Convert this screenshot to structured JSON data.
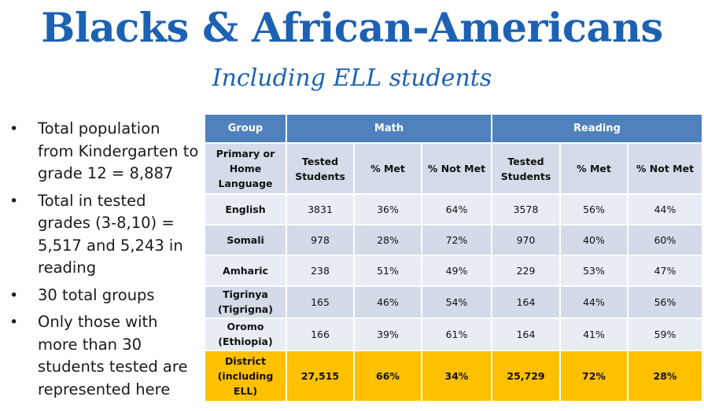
{
  "title": "Blacks & African-Americans",
  "subtitle": "Including ELL students",
  "bullets": [
    "Total population from Kindergarten to grade 12 = 8,887",
    "Total in tested grades (3-8,10) = 5,517 and 5,243 in reading",
    "30 total groups",
    "Only those with more than 30 students tested are represented here"
  ],
  "table": {
    "group_header": "Group",
    "math_header": "Math",
    "reading_header": "Reading",
    "sub_headers": [
      "Primary or Home Language",
      "Tested Students",
      "% Met",
      "% Not Met",
      "Tested Students",
      "% Met",
      "% Not Met"
    ],
    "rows": [
      [
        "English",
        "3831",
        "36%",
        "64%",
        "3578",
        "56%",
        "44%"
      ],
      [
        "Somali",
        "978",
        "28%",
        "72%",
        "970",
        "40%",
        "60%"
      ],
      [
        "Amharic",
        "238",
        "51%",
        "49%",
        "229",
        "53%",
        "47%"
      ],
      [
        "Tigrinya (Tigrigna)",
        "165",
        "46%",
        "54%",
        "164",
        "44%",
        "56%"
      ],
      [
        "Oromo (Ethiopia)",
        "166",
        "39%",
        "61%",
        "164",
        "41%",
        "59%"
      ]
    ],
    "district_row": [
      "District (including ELL)",
      "27,515",
      "66%",
      "34%",
      "25,729",
      "72%",
      "28%"
    ]
  },
  "colors": {
    "title": "#1d62b2",
    "header": "#4f81bd",
    "row_light": "#e8ecf4",
    "row_dark": "#d3dae8",
    "district": "#ffc000"
  }
}
